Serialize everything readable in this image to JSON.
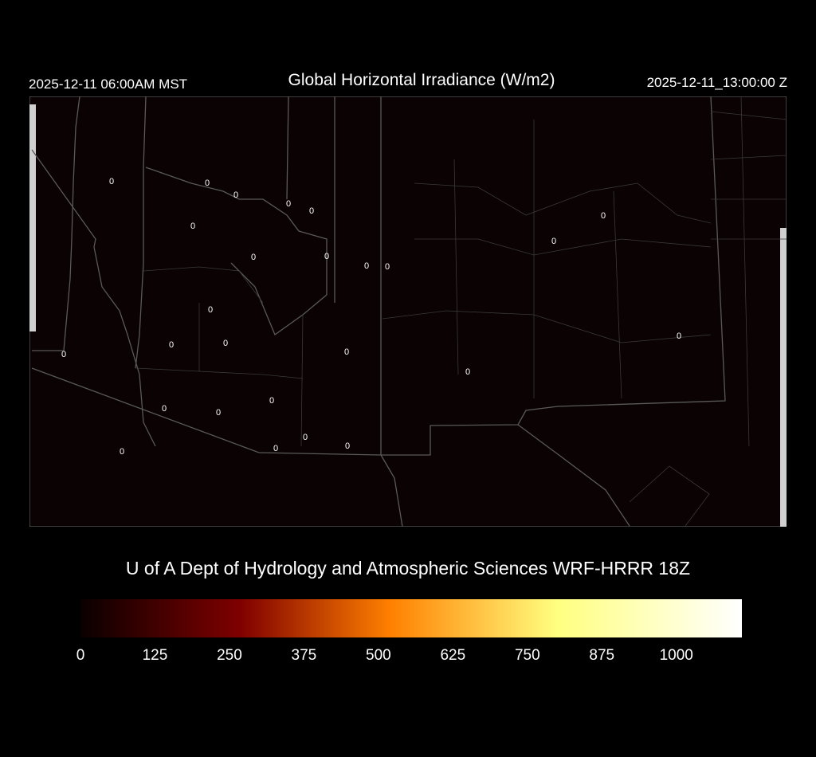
{
  "header": {
    "local_time": "2025-12-11 06:00AM MST",
    "title": "Global Horizontal Irradiance (W/m2)",
    "valid_time": "2025-12-11_13:00:00 Z"
  },
  "map": {
    "background_color": "#0a0203",
    "border_color": "#5a5a5a",
    "station_values": [
      "0",
      "0",
      "0",
      "0",
      "0",
      "0",
      "0",
      "0",
      "0",
      "0",
      "0",
      "0",
      "0",
      "0",
      "0",
      "0",
      "0",
      "0",
      "0",
      "0",
      "0",
      "0",
      "0",
      "0",
      "0",
      "0"
    ]
  },
  "credit": "U of A Dept of Hydrology and Atmospheric Sciences WRF-HRRR 18Z",
  "colorbar": {
    "range": [
      0,
      1110
    ],
    "ticks": [
      "0",
      "125",
      "250",
      "375",
      "500",
      "625",
      "750",
      "875",
      "1000"
    ],
    "stops": [
      {
        "value": 0,
        "color": "#0a0000"
      },
      {
        "value": 270,
        "color": "#800000"
      },
      {
        "value": 520,
        "color": "#ff8000"
      },
      {
        "value": 800,
        "color": "#ffff80"
      },
      {
        "value": 1110,
        "color": "#ffffff"
      }
    ]
  }
}
